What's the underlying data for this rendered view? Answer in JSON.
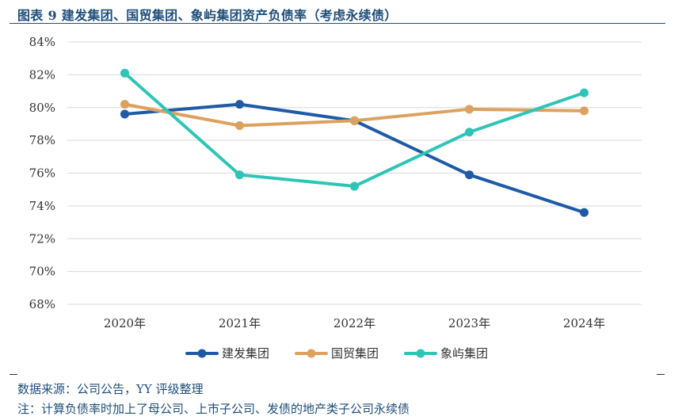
{
  "title": "图表 9 建发集团、国贸集团、象屿集团资产负债率（考虑永续债）",
  "source": "数据来源：公司公告，YY 评级整理",
  "footnote": "注：计算负债率时加上了母公司、上市子公司、发债的地产类子公司永续债",
  "chart_data": {
    "type": "line",
    "categories": [
      "2020年",
      "2021年",
      "2022年",
      "2023年",
      "2024年"
    ],
    "y_ticks": [
      "68%",
      "70%",
      "72%",
      "74%",
      "76%",
      "78%",
      "80%",
      "82%",
      "84%"
    ],
    "ylim": [
      68,
      84
    ],
    "y_unit": "%",
    "grid": true,
    "legend_position": "bottom",
    "series": [
      {
        "name": "建发集团",
        "color": "#1f5aa6",
        "values": [
          79.6,
          80.2,
          79.2,
          75.9,
          73.6
        ]
      },
      {
        "name": "国贸集团",
        "color": "#dca15e",
        "values": [
          80.2,
          78.9,
          79.2,
          79.9,
          79.8
        ]
      },
      {
        "name": "象屿集团",
        "color": "#2fc4b6",
        "values": [
          82.1,
          75.9,
          75.2,
          78.5,
          80.9
        ]
      }
    ]
  }
}
